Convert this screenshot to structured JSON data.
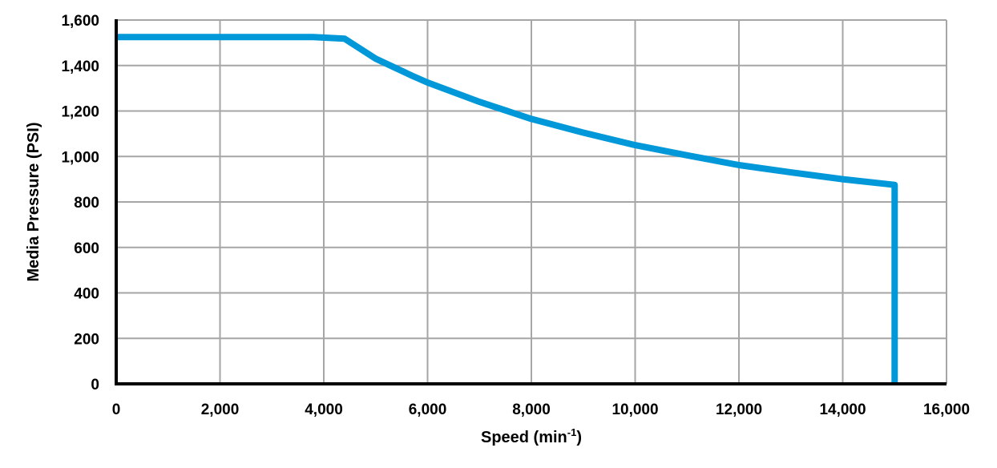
{
  "chart_data": {
    "type": "line",
    "title": "",
    "xlabel": "Speed (min-1)",
    "xlabel_parts": {
      "base": "Speed (min",
      "sup": "-1",
      "close": ")"
    },
    "ylabel": "Media Pressure (PSI)",
    "xlim": [
      0,
      16000
    ],
    "ylim": [
      0,
      1600
    ],
    "x_ticks": [
      0,
      2000,
      4000,
      6000,
      8000,
      10000,
      12000,
      14000,
      16000
    ],
    "x_tick_labels": [
      "0",
      "2,000",
      "4,000",
      "6,000",
      "8,000",
      "10,000",
      "12,000",
      "14,000",
      "16,000"
    ],
    "y_ticks": [
      0,
      200,
      400,
      600,
      800,
      1000,
      1200,
      1400,
      1600
    ],
    "y_tick_labels": [
      "0",
      "200",
      "400",
      "600",
      "800",
      "1,000",
      "1,200",
      "1,400",
      "1,600"
    ],
    "grid": true,
    "legend": null,
    "series": [
      {
        "name": "Media Pressure",
        "color": "#0098d8",
        "x": [
          0,
          1000,
          2000,
          3000,
          3800,
          4400,
          5000,
          5700,
          6000,
          7000,
          8000,
          9000,
          10000,
          11000,
          12000,
          13000,
          14000,
          15000,
          15000
        ],
        "values": [
          1525,
          1525,
          1525,
          1525,
          1525,
          1518,
          1430,
          1355,
          1325,
          1240,
          1165,
          1105,
          1050,
          1005,
          962,
          930,
          900,
          875,
          0
        ]
      }
    ]
  },
  "colors": {
    "line": "#0098d8",
    "grid": "#a6a6a6",
    "axis": "#000000"
  }
}
